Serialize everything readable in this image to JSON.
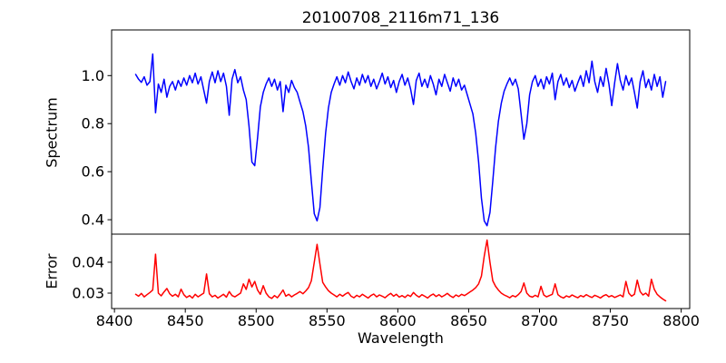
{
  "figure": {
    "title": "20100708_2116m71_136",
    "background": "#ffffff",
    "frame_color": "#000000",
    "text_color": "#000000"
  },
  "chart_data": [
    {
      "type": "line",
      "name": "spectrum-panel",
      "title": "20100708_2116m71_136",
      "xlabel": "",
      "ylabel": "Spectrum",
      "grid": false,
      "legend": "none",
      "xlim": [
        8398,
        8806
      ],
      "ylim": [
        0.34,
        1.19
      ],
      "yticks": [
        0.4,
        0.6,
        0.8,
        1.0
      ],
      "ytick_labels": [
        "0.4",
        "0.6",
        "0.8",
        "1.0"
      ],
      "xticks": [
        8400,
        8450,
        8500,
        8550,
        8600,
        8650,
        8700,
        8750,
        8800
      ],
      "xtick_labels": [],
      "series": [
        {
          "name": "spectrum",
          "color": "#0000ff",
          "line_width": 1.5,
          "x_start": 8415,
          "x_step": 2,
          "values": [
            1.005,
            0.985,
            0.972,
            0.995,
            0.96,
            0.975,
            1.09,
            0.845,
            0.965,
            0.93,
            0.985,
            0.91,
            0.955,
            0.975,
            0.94,
            0.98,
            0.955,
            0.99,
            0.96,
            1.0,
            0.97,
            1.01,
            0.965,
            0.995,
            0.94,
            0.885,
            0.975,
            1.015,
            0.97,
            1.02,
            0.975,
            1.01,
            0.955,
            0.835,
            0.985,
            1.025,
            0.97,
            0.995,
            0.94,
            0.9,
            0.79,
            0.64,
            0.625,
            0.74,
            0.87,
            0.93,
            0.965,
            0.99,
            0.955,
            0.985,
            0.94,
            0.975,
            0.85,
            0.96,
            0.93,
            0.98,
            0.95,
            0.93,
            0.89,
            0.85,
            0.79,
            0.7,
            0.56,
            0.425,
            0.395,
            0.45,
            0.61,
            0.76,
            0.865,
            0.93,
            0.965,
            0.995,
            0.96,
            1.0,
            0.97,
            1.015,
            0.975,
            0.945,
            0.99,
            0.96,
            1.005,
            0.97,
            1.0,
            0.955,
            0.985,
            0.945,
            0.975,
            1.01,
            0.965,
            0.995,
            0.95,
            0.98,
            0.93,
            0.975,
            1.005,
            0.96,
            0.99,
            0.945,
            0.88,
            0.98,
            1.01,
            0.955,
            0.985,
            0.95,
            1.0,
            0.965,
            0.92,
            0.985,
            0.955,
            1.005,
            0.97,
            0.935,
            0.99,
            0.955,
            0.985,
            0.94,
            0.96,
            0.92,
            0.88,
            0.84,
            0.76,
            0.64,
            0.49,
            0.395,
            0.375,
            0.43,
            0.56,
            0.7,
            0.81,
            0.885,
            0.935,
            0.965,
            0.99,
            0.96,
            0.985,
            0.945,
            0.84,
            0.735,
            0.8,
            0.92,
            0.975,
            1.0,
            0.955,
            0.985,
            0.945,
            0.995,
            0.965,
            1.01,
            0.9,
            0.975,
            1.005,
            0.96,
            0.99,
            0.95,
            0.98,
            0.935,
            0.97,
            1.0,
            0.955,
            1.02,
            0.97,
            1.06,
            0.975,
            0.93,
            0.995,
            0.955,
            1.03,
            0.965,
            0.875,
            0.97,
            1.05,
            0.98,
            0.94,
            1.0,
            0.96,
            0.99,
            0.93,
            0.865,
            0.975,
            1.02,
            0.95,
            0.985,
            0.94,
            1.005,
            0.955,
            0.995,
            0.91,
            0.975
          ]
        }
      ]
    },
    {
      "type": "line",
      "name": "error-panel",
      "title": "",
      "xlabel": "Wavelength",
      "ylabel": "Error",
      "grid": false,
      "legend": "none",
      "xlim": [
        8398,
        8806
      ],
      "ylim": [
        0.025,
        0.0491
      ],
      "yticks": [
        0.03,
        0.04
      ],
      "ytick_labels": [
        "0.03",
        "0.04"
      ],
      "xticks": [
        8400,
        8450,
        8500,
        8550,
        8600,
        8650,
        8700,
        8750,
        8800
      ],
      "xtick_labels": [
        "8400",
        "8450",
        "8500",
        "8550",
        "8600",
        "8650",
        "8700",
        "8750",
        "8800"
      ],
      "series": [
        {
          "name": "error",
          "color": "#ff0000",
          "line_width": 1.5,
          "x_start": 8415,
          "x_step": 2,
          "values": [
            0.0296,
            0.029,
            0.0299,
            0.0288,
            0.0295,
            0.0302,
            0.031,
            0.0426,
            0.03,
            0.0291,
            0.0304,
            0.0315,
            0.0298,
            0.029,
            0.0296,
            0.0288,
            0.0313,
            0.0295,
            0.0286,
            0.0292,
            0.0284,
            0.0296,
            0.0288,
            0.0294,
            0.03,
            0.0362,
            0.0298,
            0.0288,
            0.0293,
            0.0284,
            0.029,
            0.0296,
            0.0287,
            0.0305,
            0.0292,
            0.0288,
            0.0294,
            0.03,
            0.033,
            0.0312,
            0.0345,
            0.032,
            0.0338,
            0.031,
            0.0296,
            0.0324,
            0.03,
            0.0288,
            0.0283,
            0.0292,
            0.0285,
            0.0297,
            0.031,
            0.029,
            0.0296,
            0.0288,
            0.0294,
            0.0299,
            0.0305,
            0.0298,
            0.0307,
            0.0318,
            0.034,
            0.04,
            0.0458,
            0.0395,
            0.0335,
            0.032,
            0.0308,
            0.03,
            0.0294,
            0.0288,
            0.0296,
            0.029,
            0.0297,
            0.0302,
            0.029,
            0.0285,
            0.0293,
            0.0288,
            0.0296,
            0.029,
            0.0284,
            0.0292,
            0.0297,
            0.0288,
            0.0294,
            0.029,
            0.0285,
            0.0293,
            0.0299,
            0.029,
            0.0296,
            0.0287,
            0.0292,
            0.0286,
            0.0294,
            0.0289,
            0.0302,
            0.0293,
            0.0287,
            0.0295,
            0.029,
            0.0284,
            0.0292,
            0.0297,
            0.0289,
            0.0295,
            0.0288,
            0.0293,
            0.0299,
            0.0291,
            0.0286,
            0.0294,
            0.0289,
            0.0296,
            0.0292,
            0.0298,
            0.0304,
            0.031,
            0.0318,
            0.033,
            0.0355,
            0.042,
            0.0472,
            0.04,
            0.034,
            0.0322,
            0.031,
            0.03,
            0.0294,
            0.029,
            0.0285,
            0.0292,
            0.0288,
            0.0295,
            0.0305,
            0.0333,
            0.03,
            0.029,
            0.0287,
            0.0293,
            0.0288,
            0.0322,
            0.0294,
            0.0288,
            0.0292,
            0.0296,
            0.033,
            0.0295,
            0.0288,
            0.0284,
            0.0291,
            0.0287,
            0.0294,
            0.0289,
            0.0285,
            0.0292,
            0.0288,
            0.0295,
            0.029,
            0.0286,
            0.0293,
            0.0289,
            0.0284,
            0.0291,
            0.0295,
            0.0288,
            0.0292,
            0.0286,
            0.029,
            0.0294,
            0.0288,
            0.0338,
            0.03,
            0.029,
            0.0296,
            0.0342,
            0.0305,
            0.0294,
            0.03,
            0.029,
            0.0345,
            0.0312,
            0.0296,
            0.0288,
            0.0281,
            0.0275
          ]
        }
      ]
    }
  ]
}
